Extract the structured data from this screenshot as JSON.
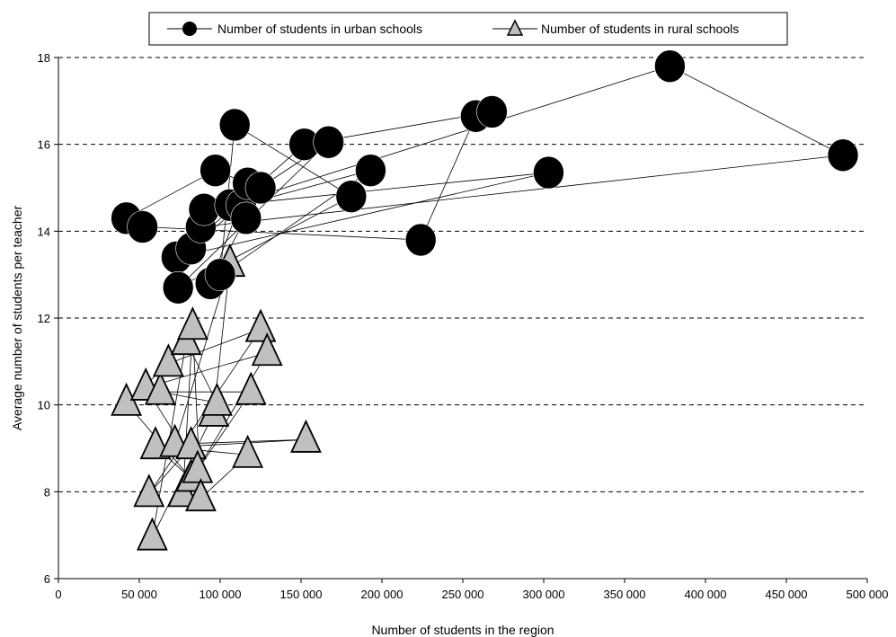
{
  "chart_data": {
    "type": "scatter",
    "xlabel": "Number of students in the region",
    "ylabel": "Average number of students per teacher",
    "xlim": [
      0,
      500000
    ],
    "ylim": [
      6,
      18
    ],
    "x_ticks": [
      0,
      50000,
      100000,
      150000,
      200000,
      250000,
      300000,
      350000,
      400000,
      450000,
      500000
    ],
    "x_tick_labels": [
      "0",
      "50 000",
      "100 000",
      "150 000",
      "200 000",
      "250 000",
      "300 000",
      "350 000",
      "400 000",
      "450 000",
      "500 000"
    ],
    "y_ticks": [
      6,
      8,
      10,
      12,
      14,
      16,
      18
    ],
    "y_tick_labels": [
      "6",
      "8",
      "10",
      "12",
      "14",
      "16",
      "18"
    ],
    "grid": "horizontal dashed",
    "legend_position": "top",
    "series": [
      {
        "name": "Number of students in urban schools",
        "marker": "circle",
        "color": "#000000",
        "points": [
          [
            42000,
            14.3
          ],
          [
            52000,
            14.1
          ],
          [
            73000,
            13.4
          ],
          [
            74000,
            12.7
          ],
          [
            82000,
            13.6
          ],
          [
            88000,
            14.1
          ],
          [
            90000,
            14.5
          ],
          [
            94000,
            12.8
          ],
          [
            97000,
            15.4
          ],
          [
            100000,
            13.0
          ],
          [
            106000,
            14.6
          ],
          [
            109000,
            16.45
          ],
          [
            113000,
            14.6
          ],
          [
            116000,
            14.3
          ],
          [
            117000,
            15.1
          ],
          [
            125000,
            15.0
          ],
          [
            152000,
            16.0
          ],
          [
            167000,
            16.05
          ],
          [
            181000,
            14.8
          ],
          [
            193000,
            15.4
          ],
          [
            224000,
            13.8
          ],
          [
            258000,
            16.65
          ],
          [
            268000,
            16.75
          ],
          [
            303000,
            15.35
          ],
          [
            378000,
            17.8
          ],
          [
            485000,
            15.75
          ]
        ],
        "connections": [
          [
            0,
            1
          ],
          [
            1,
            20
          ],
          [
            20,
            21
          ],
          [
            21,
            22
          ],
          [
            22,
            16
          ],
          [
            16,
            2
          ],
          [
            2,
            23
          ],
          [
            23,
            10
          ],
          [
            10,
            24
          ],
          [
            24,
            25
          ],
          [
            25,
            5
          ],
          [
            5,
            17
          ],
          [
            17,
            3
          ],
          [
            3,
            18
          ],
          [
            18,
            11
          ],
          [
            11,
            9
          ],
          [
            9,
            19
          ],
          [
            19,
            12
          ],
          [
            12,
            15
          ],
          [
            15,
            4
          ],
          [
            4,
            6
          ],
          [
            6,
            13
          ],
          [
            13,
            7
          ],
          [
            7,
            14
          ],
          [
            14,
            8
          ],
          [
            8,
            0
          ]
        ]
      },
      {
        "name": "Number of students in rural schools",
        "marker": "triangle",
        "color": "#c0c0c0",
        "points": [
          [
            42000,
            10.05
          ],
          [
            54000,
            10.4
          ],
          [
            56000,
            7.95
          ],
          [
            58000,
            6.95
          ],
          [
            60000,
            9.05
          ],
          [
            63000,
            10.3
          ],
          [
            68000,
            10.95
          ],
          [
            72000,
            9.1
          ],
          [
            77000,
            7.95
          ],
          [
            79000,
            11.45
          ],
          [
            82000,
            8.3
          ],
          [
            82000,
            9.05
          ],
          [
            83000,
            11.8
          ],
          [
            86000,
            8.5
          ],
          [
            88000,
            7.85
          ],
          [
            96000,
            9.8
          ],
          [
            98000,
            10.05
          ],
          [
            106000,
            13.25
          ],
          [
            117000,
            8.85
          ],
          [
            119000,
            10.3
          ],
          [
            125000,
            11.75
          ],
          [
            129000,
            11.2
          ],
          [
            153000,
            9.2
          ]
        ],
        "connections": [
          [
            0,
            6
          ],
          [
            6,
            20
          ],
          [
            20,
            2
          ],
          [
            2,
            11
          ],
          [
            11,
            22
          ],
          [
            22,
            7
          ],
          [
            7,
            17
          ],
          [
            17,
            15
          ],
          [
            15,
            3
          ],
          [
            3,
            9
          ],
          [
            9,
            16
          ],
          [
            16,
            5
          ],
          [
            5,
            19
          ],
          [
            19,
            13
          ],
          [
            13,
            1
          ],
          [
            1,
            21
          ],
          [
            21,
            8
          ],
          [
            8,
            12
          ],
          [
            12,
            14
          ],
          [
            14,
            18
          ],
          [
            18,
            4
          ],
          [
            4,
            10
          ],
          [
            10,
            0
          ]
        ]
      }
    ]
  }
}
